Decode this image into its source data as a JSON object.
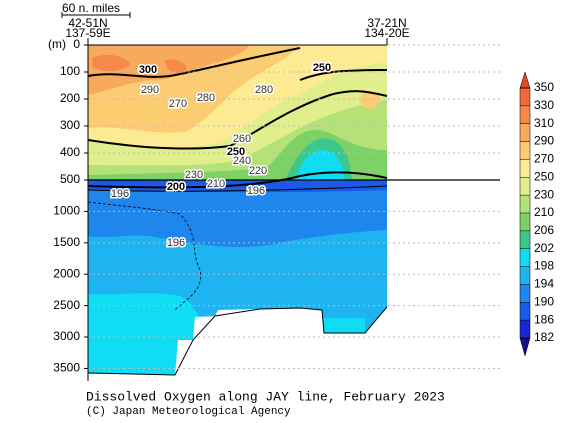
{
  "chart_data": {
    "type": "contour",
    "title": "Dissolved Oxygen along JAY line, February 2023",
    "subtitle": "(C) Japan Meteorological Agency",
    "ylabel": "(m)",
    "scale_label": "60 n. miles",
    "left_station": [
      "42-51N",
      "137-59E"
    ],
    "right_station": [
      "37-21N",
      "134-20E"
    ],
    "panels": [
      {
        "ylim": [
          0,
          500
        ],
        "yticks": [
          0,
          100,
          200,
          300,
          400,
          500
        ]
      },
      {
        "ylim": [
          500,
          3700
        ],
        "yticks": [
          1000,
          1500,
          2000,
          2500,
          3000,
          3500
        ]
      }
    ],
    "grid": true,
    "levels": [
      182,
      186,
      190,
      194,
      198,
      202,
      206,
      210,
      230,
      250,
      270,
      290,
      310,
      330,
      350
    ],
    "colors": [
      "#12128c",
      "#1a28d4",
      "#1a5ae6",
      "#1e86ec",
      "#1eb4f2",
      "#10dcf4",
      "#3cc88c",
      "#7cd264",
      "#b4e278",
      "#e0ee8c",
      "#fdeb94",
      "#fbcc72",
      "#f8aa5c",
      "#f5884a",
      "#f06a3a",
      "#e24826"
    ],
    "contour_labels": [
      300,
      250,
      290,
      270,
      280,
      280,
      260,
      250,
      240,
      220,
      230,
      210,
      200,
      196,
      196,
      196
    ]
  }
}
